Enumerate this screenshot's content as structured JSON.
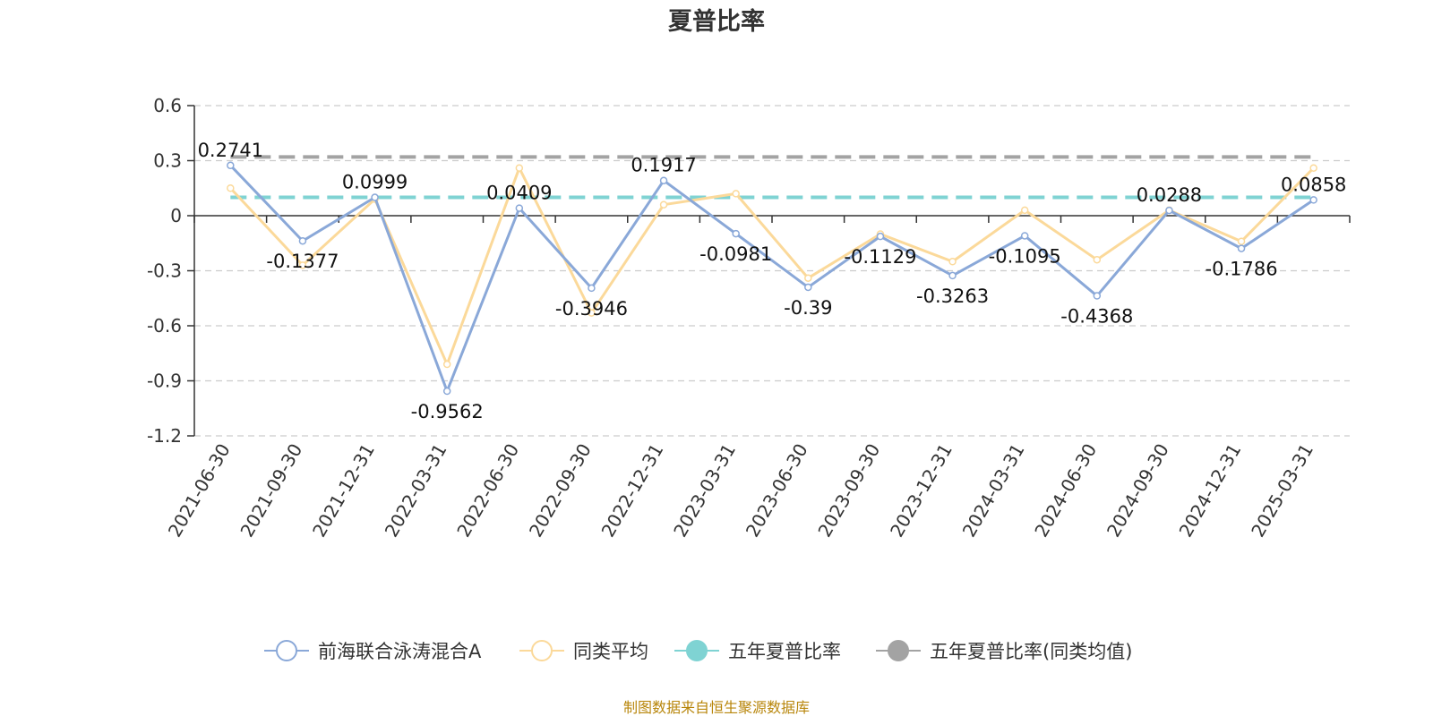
{
  "chart_data": {
    "type": "line",
    "title": "夏普比率",
    "xlabel": "",
    "ylabel": "",
    "categories": [
      "2021-06-30",
      "2021-09-30",
      "2021-12-31",
      "2022-03-31",
      "2022-06-30",
      "2022-09-30",
      "2022-12-31",
      "2023-03-31",
      "2023-06-30",
      "2023-09-30",
      "2023-12-31",
      "2024-03-31",
      "2024-06-30",
      "2024-09-30",
      "2024-12-31",
      "2025-03-31"
    ],
    "yticks": [
      "0.6",
      "0.3",
      "0",
      "-0.3",
      "-0.6",
      "-0.9",
      "-1.2"
    ],
    "ylim": [
      -1.2,
      0.6
    ],
    "grid": true,
    "legend_position": "bottom",
    "series": [
      {
        "name": "前海联合泳涛混合A",
        "color": "#8aa8d8",
        "values": [
          0.2741,
          -0.1377,
          0.0999,
          -0.9562,
          0.0409,
          -0.3946,
          0.1917,
          -0.0981,
          -0.39,
          -0.1129,
          -0.3263,
          -0.1095,
          -0.4368,
          0.0288,
          -0.1786,
          0.0858
        ],
        "labels": [
          "0.2741",
          "-0.1377",
          "0.0999",
          "-0.9562",
          "0.0409",
          "-0.3946",
          "0.1917",
          "-0.0981",
          "-0.39",
          "-0.1129",
          "-0.3263",
          "-0.1095",
          "-0.4368",
          "0.0288",
          "-0.1786",
          "0.0858"
        ]
      },
      {
        "name": "同类平均",
        "color": "#fbd99a",
        "values": [
          0.15,
          -0.27,
          0.09,
          -0.81,
          0.26,
          -0.53,
          0.06,
          0.12,
          -0.34,
          -0.1,
          -0.25,
          0.03,
          -0.24,
          0.03,
          -0.14,
          0.26
        ]
      },
      {
        "name": "五年夏普比率",
        "color": "#7fd3d3",
        "values": [
          0.1,
          0.1,
          0.1,
          0.1,
          0.1,
          0.1,
          0.1,
          0.1,
          0.1,
          0.1,
          0.1,
          0.1,
          0.1,
          0.1,
          0.1,
          0.1
        ]
      },
      {
        "name": "五年夏普比率(同类均值)",
        "color": "#a3a3a3",
        "values": [
          0.32,
          0.32,
          0.32,
          0.32,
          0.32,
          0.32,
          0.32,
          0.32,
          0.32,
          0.32,
          0.32,
          0.32,
          0.32,
          0.32,
          0.32,
          0.32
        ]
      }
    ]
  },
  "source": "制图数据来自恒生聚源数据库"
}
